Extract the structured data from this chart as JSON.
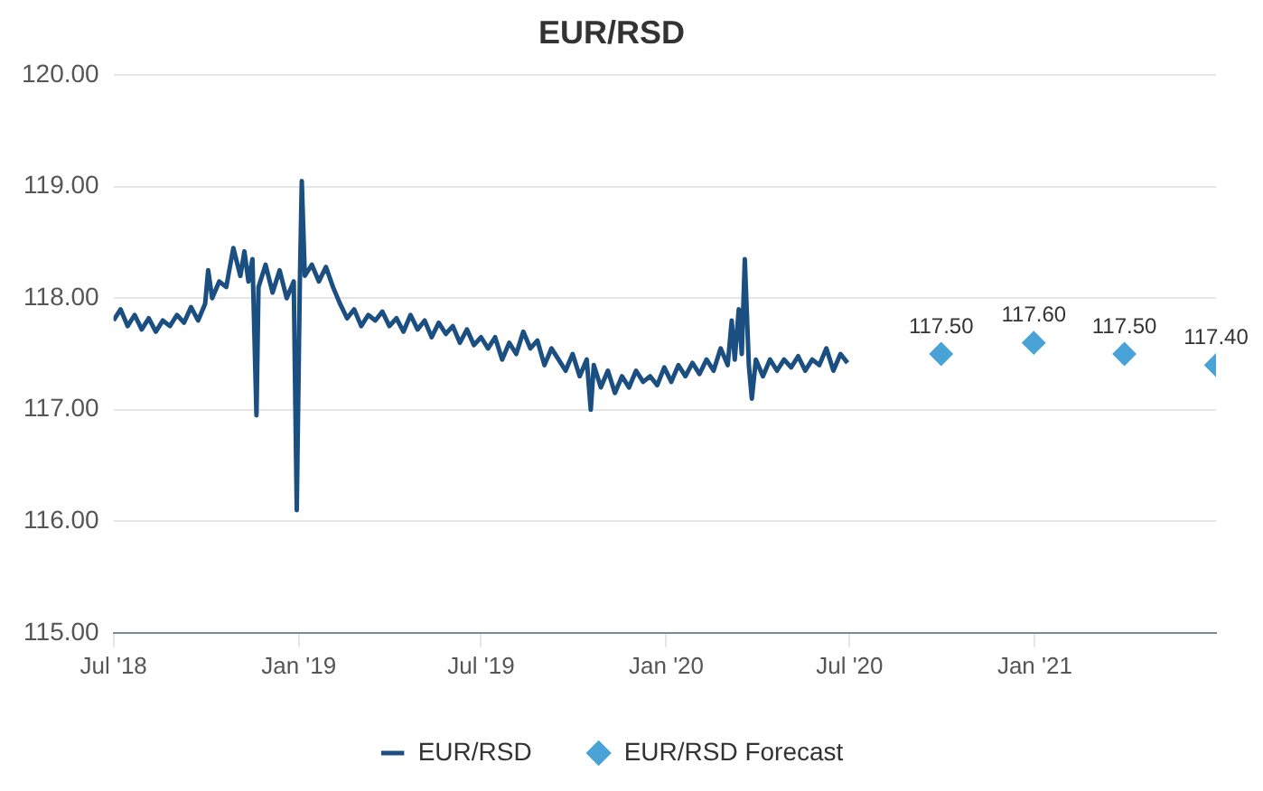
{
  "chart_data": {
    "type": "line",
    "title": "EUR/RSD",
    "xlim": [
      "2018-07-01",
      "2021-06-30"
    ],
    "xticks": [
      {
        "value": "2018-07-01",
        "label": "Jul '18"
      },
      {
        "value": "2019-01-01",
        "label": "Jan '19"
      },
      {
        "value": "2019-07-01",
        "label": "Jul '19"
      },
      {
        "value": "2020-01-01",
        "label": "Jan '20"
      },
      {
        "value": "2020-07-01",
        "label": "Jul '20"
      },
      {
        "value": "2021-01-01",
        "label": "Jan '21"
      }
    ],
    "ylim": [
      115,
      120
    ],
    "yticks": [
      {
        "value": 115,
        "label": "115.00"
      },
      {
        "value": 116,
        "label": "116.00"
      },
      {
        "value": 117,
        "label": "117.00"
      },
      {
        "value": 118,
        "label": "118.00"
      },
      {
        "value": 119,
        "label": "119.00"
      },
      {
        "value": 120,
        "label": "120.00"
      }
    ],
    "grid": "y",
    "legend": "bottom",
    "series": [
      {
        "name": "EUR/RSD",
        "color": "#1b4f82",
        "marker": "none",
        "line_style": "solid",
        "x": [
          "2018-07-01",
          "2018-07-08",
          "2018-07-15",
          "2018-07-22",
          "2018-07-29",
          "2018-08-05",
          "2018-08-12",
          "2018-08-19",
          "2018-08-26",
          "2018-09-02",
          "2018-09-09",
          "2018-09-16",
          "2018-09-23",
          "2018-09-30",
          "2018-10-03",
          "2018-10-07",
          "2018-10-14",
          "2018-10-21",
          "2018-10-28",
          "2018-11-04",
          "2018-11-08",
          "2018-11-12",
          "2018-11-16",
          "2018-11-20",
          "2018-11-22",
          "2018-11-29",
          "2018-12-06",
          "2018-12-13",
          "2018-12-20",
          "2018-12-27",
          "2018-12-30",
          "2019-01-02",
          "2019-01-04",
          "2019-01-07",
          "2019-01-14",
          "2019-01-21",
          "2019-01-28",
          "2019-02-04",
          "2019-02-11",
          "2019-02-18",
          "2019-02-25",
          "2019-03-04",
          "2019-03-11",
          "2019-03-18",
          "2019-03-25",
          "2019-04-01",
          "2019-04-08",
          "2019-04-15",
          "2019-04-22",
          "2019-04-29",
          "2019-05-06",
          "2019-05-13",
          "2019-05-20",
          "2019-05-27",
          "2019-06-03",
          "2019-06-10",
          "2019-06-17",
          "2019-06-24",
          "2019-07-01",
          "2019-07-08",
          "2019-07-15",
          "2019-07-22",
          "2019-07-29",
          "2019-08-05",
          "2019-08-12",
          "2019-08-19",
          "2019-08-26",
          "2019-09-02",
          "2019-09-09",
          "2019-09-16",
          "2019-09-23",
          "2019-09-30",
          "2019-10-07",
          "2019-10-14",
          "2019-10-18",
          "2019-10-21",
          "2019-10-28",
          "2019-11-04",
          "2019-11-11",
          "2019-11-18",
          "2019-11-25",
          "2019-12-02",
          "2019-12-09",
          "2019-12-16",
          "2019-12-23",
          "2019-12-30",
          "2020-01-06",
          "2020-01-13",
          "2020-01-20",
          "2020-01-27",
          "2020-02-03",
          "2020-02-10",
          "2020-02-17",
          "2020-02-24",
          "2020-03-02",
          "2020-03-06",
          "2020-03-09",
          "2020-03-13",
          "2020-03-16",
          "2020-03-19",
          "2020-03-23",
          "2020-03-26",
          "2020-03-30",
          "2020-04-06",
          "2020-04-13",
          "2020-04-20",
          "2020-04-27",
          "2020-05-04",
          "2020-05-11",
          "2020-05-18",
          "2020-05-25",
          "2020-06-01",
          "2020-06-08",
          "2020-06-15",
          "2020-06-22",
          "2020-06-29"
        ],
        "values": [
          117.8,
          117.9,
          117.75,
          117.85,
          117.72,
          117.82,
          117.7,
          117.8,
          117.75,
          117.85,
          117.78,
          117.92,
          117.8,
          117.95,
          118.25,
          118.0,
          118.15,
          118.1,
          118.45,
          118.2,
          118.42,
          118.15,
          118.35,
          116.95,
          118.1,
          118.3,
          118.05,
          118.25,
          118.0,
          118.15,
          116.1,
          118.1,
          119.05,
          118.2,
          118.3,
          118.15,
          118.28,
          118.1,
          117.95,
          117.82,
          117.9,
          117.75,
          117.85,
          117.8,
          117.88,
          117.75,
          117.82,
          117.7,
          117.85,
          117.72,
          117.8,
          117.65,
          117.78,
          117.68,
          117.75,
          117.6,
          117.72,
          117.58,
          117.65,
          117.55,
          117.65,
          117.45,
          117.6,
          117.5,
          117.7,
          117.55,
          117.62,
          117.4,
          117.55,
          117.45,
          117.35,
          117.5,
          117.3,
          117.45,
          117.0,
          117.4,
          117.2,
          117.35,
          117.15,
          117.3,
          117.2,
          117.35,
          117.25,
          117.3,
          117.22,
          117.38,
          117.25,
          117.4,
          117.3,
          117.42,
          117.32,
          117.45,
          117.35,
          117.55,
          117.4,
          117.8,
          117.45,
          117.9,
          117.5,
          118.35,
          117.4,
          117.1,
          117.45,
          117.3,
          117.45,
          117.35,
          117.45,
          117.38,
          117.48,
          117.35,
          117.45,
          117.4,
          117.55,
          117.35,
          117.5,
          117.42
        ]
      },
      {
        "name": "EUR/RSD Forecast",
        "type": "scatter",
        "color": "#4aa3d6",
        "marker": "diamond",
        "x": [
          "2020-09-30",
          "2020-12-31",
          "2021-03-31",
          "2021-06-30"
        ],
        "values": [
          117.5,
          117.6,
          117.5,
          117.4
        ],
        "value_labels": [
          "117.50",
          "117.60",
          "117.50",
          "117.40"
        ]
      }
    ]
  }
}
